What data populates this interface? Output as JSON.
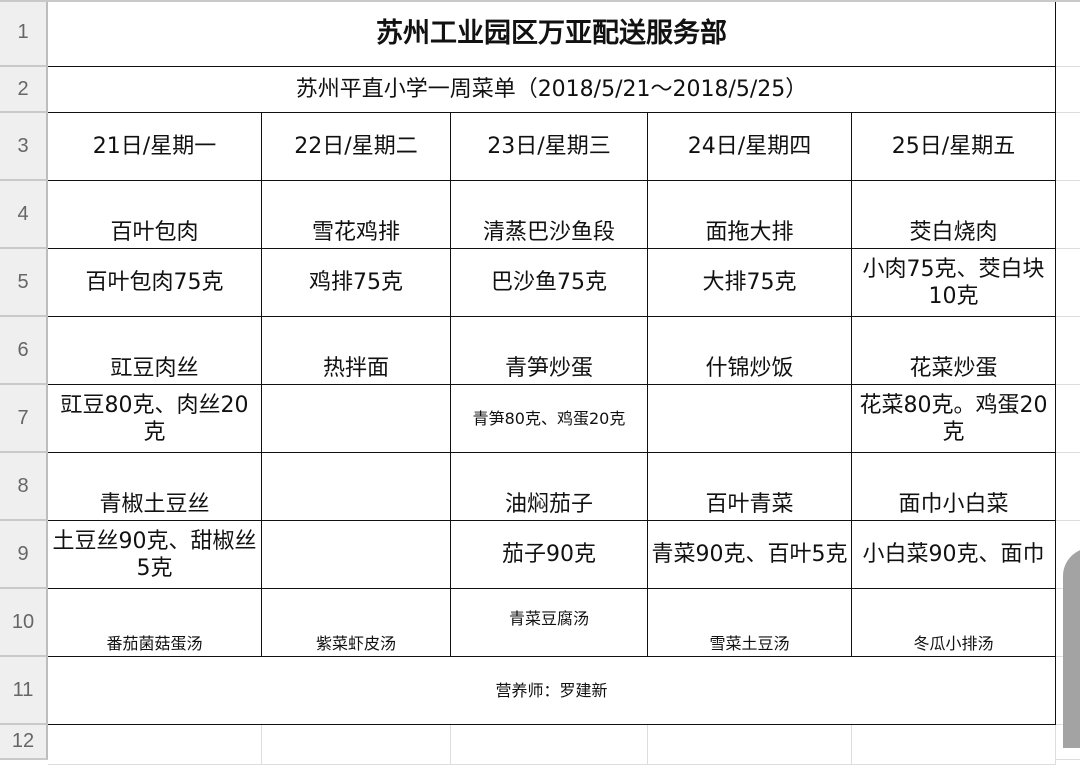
{
  "sheet": {
    "row_headers": [
      "1",
      "2",
      "3",
      "4",
      "5",
      "6",
      "7",
      "8",
      "9",
      "10",
      "11",
      "12"
    ],
    "title": "苏州工业园区万亚配送服务部",
    "subtitle": "苏州平直小学一周菜单（2018/5/21～2018/5/25）",
    "days": [
      "21日/星期一",
      "22日/星期二",
      "23日/星期三",
      "24日/星期四",
      "25日/星期五"
    ],
    "rows": [
      [
        "百叶包肉",
        "雪花鸡排",
        "清蒸巴沙鱼段",
        "面拖大排",
        "茭白烧肉"
      ],
      [
        "百叶包肉75克",
        "鸡排75克",
        "巴沙鱼75克",
        "大排75克",
        "小肉75克、茭白块10克"
      ],
      [
        "豇豆肉丝",
        "热拌面",
        "青笋炒蛋",
        "什锦炒饭",
        "花菜炒蛋"
      ],
      [
        "豇豆80克、肉丝20克",
        "",
        "青笋80克、鸡蛋20克",
        "",
        "花菜80克。鸡蛋20克"
      ],
      [
        "青椒土豆丝",
        "",
        "油焖茄子",
        "百叶青菜",
        "面巾小白菜"
      ],
      [
        "土豆丝90克、甜椒丝5克",
        "",
        "茄子90克",
        "青菜90克、百叶5克",
        "小白菜90克、面巾"
      ],
      [
        "番茄菌菇蛋汤",
        "紫菜虾皮汤",
        "青菜豆腐汤",
        "雪菜土豆汤",
        "冬瓜小排汤"
      ]
    ],
    "footer": "营养师：罗建新"
  }
}
